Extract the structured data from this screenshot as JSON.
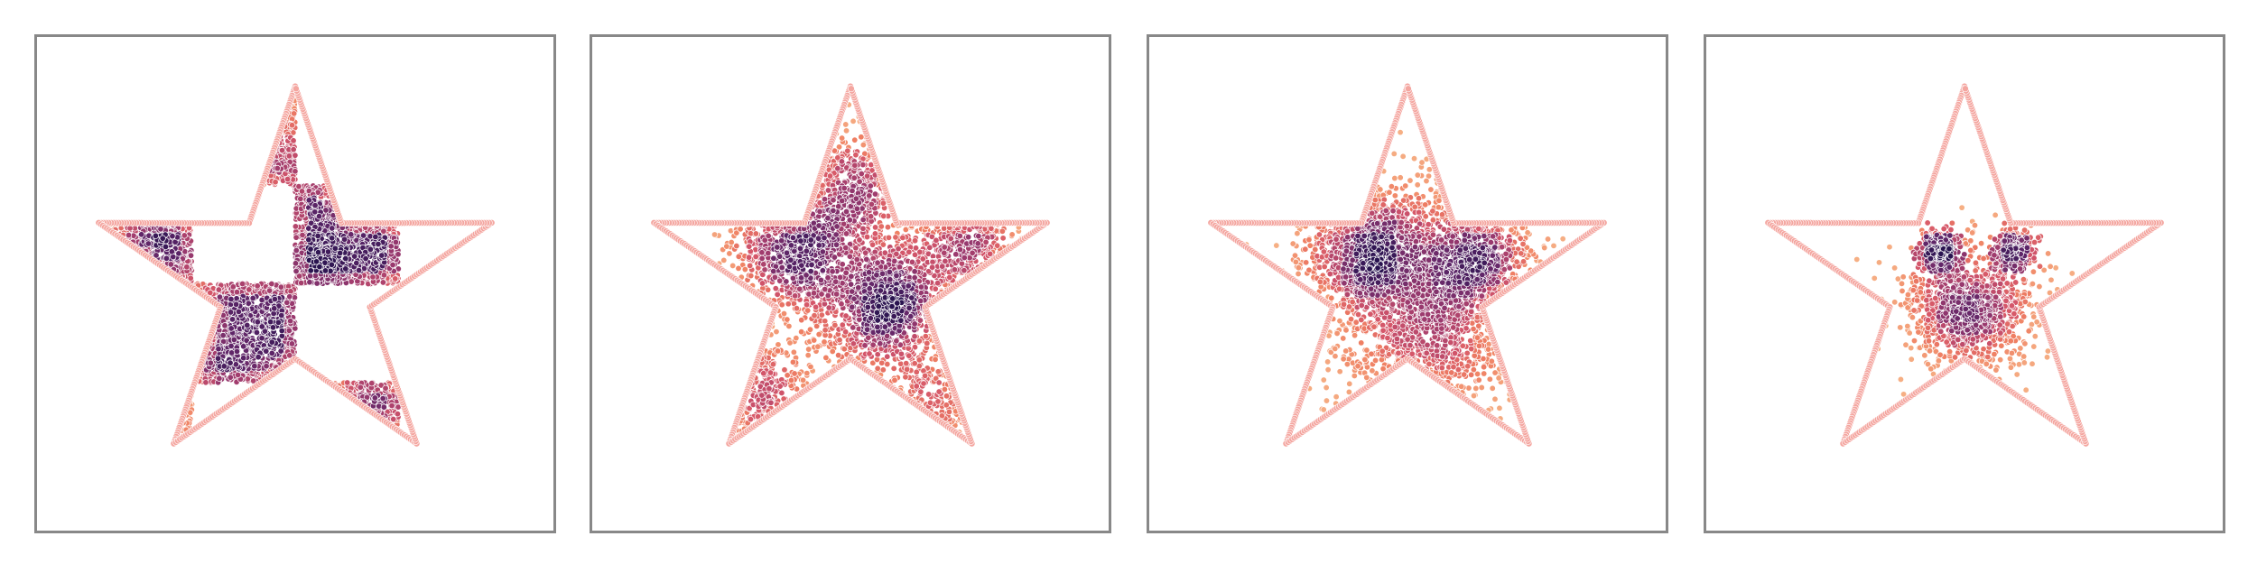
{
  "chart_data": [
    {
      "type": "scatter",
      "title": "",
      "xlim": [
        -1.25,
        1.25
      ],
      "ylim": [
        -1.25,
        1.25
      ],
      "grid": false,
      "boundary": {
        "shape": "star",
        "outer_radius": 1.0,
        "inner_radius": 0.38,
        "points": 5,
        "marker_color": "#f4a6a0"
      },
      "colormap": [
        "#2a1450",
        "#5e2568",
        "#9b3a6e",
        "#d4566a",
        "#ef7f63",
        "#f6b085"
      ],
      "distribution": "checkerboard",
      "checker_cell": 0.5,
      "n_points": 3200
    },
    {
      "type": "scatter",
      "title": "",
      "xlim": [
        -1.25,
        1.25
      ],
      "ylim": [
        -1.25,
        1.25
      ],
      "grid": false,
      "boundary": {
        "shape": "star",
        "outer_radius": 1.0,
        "inner_radius": 0.38,
        "points": 5,
        "marker_color": "#f4a6a0"
      },
      "colormap": [
        "#2a1450",
        "#5e2568",
        "#9b3a6e",
        "#d4566a",
        "#ef7f63",
        "#f6b085"
      ],
      "distribution": "clusters",
      "clusters": [
        {
          "cx": -0.25,
          "cy": 0.2,
          "s": 0.16,
          "w": 0.25
        },
        {
          "cx": 0.18,
          "cy": -0.1,
          "s": 0.17,
          "w": 0.28
        },
        {
          "cx": 0.58,
          "cy": 0.2,
          "s": 0.13,
          "w": 0.12
        },
        {
          "cx": 0.05,
          "cy": 0.5,
          "s": 0.14,
          "w": 0.12
        },
        {
          "cx": -0.45,
          "cy": -0.55,
          "s": 0.15,
          "w": 0.12
        },
        {
          "cx": 0.4,
          "cy": -0.6,
          "s": 0.12,
          "w": 0.06
        },
        {
          "cx": -0.05,
          "cy": 0.05,
          "s": 0.35,
          "w": 0.05
        }
      ],
      "n_points": 3000
    },
    {
      "type": "scatter",
      "title": "",
      "xlim": [
        -1.25,
        1.25
      ],
      "ylim": [
        -1.25,
        1.25
      ],
      "grid": false,
      "boundary": {
        "shape": "star",
        "outer_radius": 1.0,
        "inner_radius": 0.38,
        "points": 5,
        "marker_color": "#f4a6a0"
      },
      "colormap": [
        "#2a1450",
        "#5e2568",
        "#9b3a6e",
        "#d4566a",
        "#ef7f63",
        "#f6b085"
      ],
      "distribution": "clusters",
      "clusters": [
        {
          "cx": -0.18,
          "cy": 0.16,
          "s": 0.15,
          "w": 0.3
        },
        {
          "cx": 0.32,
          "cy": 0.14,
          "s": 0.14,
          "w": 0.22
        },
        {
          "cx": 0.08,
          "cy": -0.25,
          "s": 0.22,
          "w": 0.3
        },
        {
          "cx": 0.05,
          "cy": 0.08,
          "s": 0.35,
          "w": 0.18
        }
      ],
      "n_points": 3000
    },
    {
      "type": "scatter",
      "title": "",
      "xlim": [
        -1.25,
        1.25
      ],
      "ylim": [
        -1.25,
        1.25
      ],
      "grid": false,
      "boundary": {
        "shape": "star",
        "outer_radius": 1.0,
        "inner_radius": 0.38,
        "points": 5,
        "marker_color": "#f4a6a0"
      },
      "colormap": [
        "#2a1450",
        "#5e2568",
        "#9b3a6e",
        "#d4566a",
        "#ef7f63",
        "#f6b085"
      ],
      "distribution": "clusters",
      "clusters": [
        {
          "cx": -0.12,
          "cy": 0.17,
          "s": 0.05,
          "w": 0.18
        },
        {
          "cx": 0.24,
          "cy": 0.17,
          "s": 0.05,
          "w": 0.18
        },
        {
          "cx": 0.03,
          "cy": -0.12,
          "s": 0.15,
          "w": 0.64
        }
      ],
      "n_points": 1800
    }
  ]
}
